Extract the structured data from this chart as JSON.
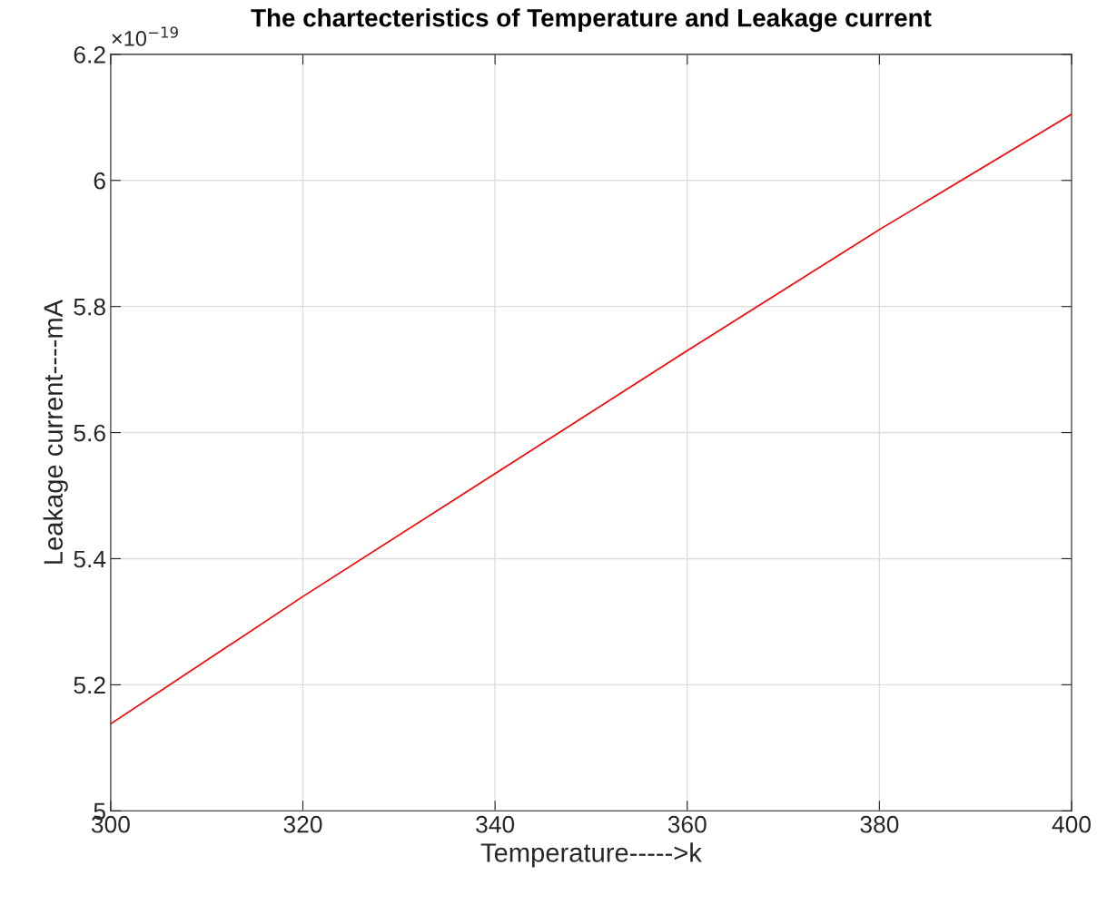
{
  "chart_data": {
    "type": "line",
    "title": "The chartecteristics of Temperature and Leakage current",
    "xlabel": "Temperature----->k",
    "ylabel": "Leakage current----mA",
    "annotations": [
      "×10$^{−19}$"
    ],
    "x": [
      300,
      320,
      340,
      360,
      380,
      400
    ],
    "series": [
      {
        "color": "#ff0000",
        "values": [
          5.138,
          5.34,
          5.535,
          5.73,
          5.922,
          6.105
        ]
      }
    ],
    "xlim": [
      300,
      400
    ],
    "xticks": [
      300,
      320,
      340,
      360,
      380,
      400
    ],
    "ylim": [
      5,
      6.2
    ],
    "yticks": [
      5,
      5.2,
      5.4,
      5.6,
      5.8,
      6,
      6.2
    ],
    "grid": true,
    "marker": "none",
    "line_style": "solid"
  }
}
